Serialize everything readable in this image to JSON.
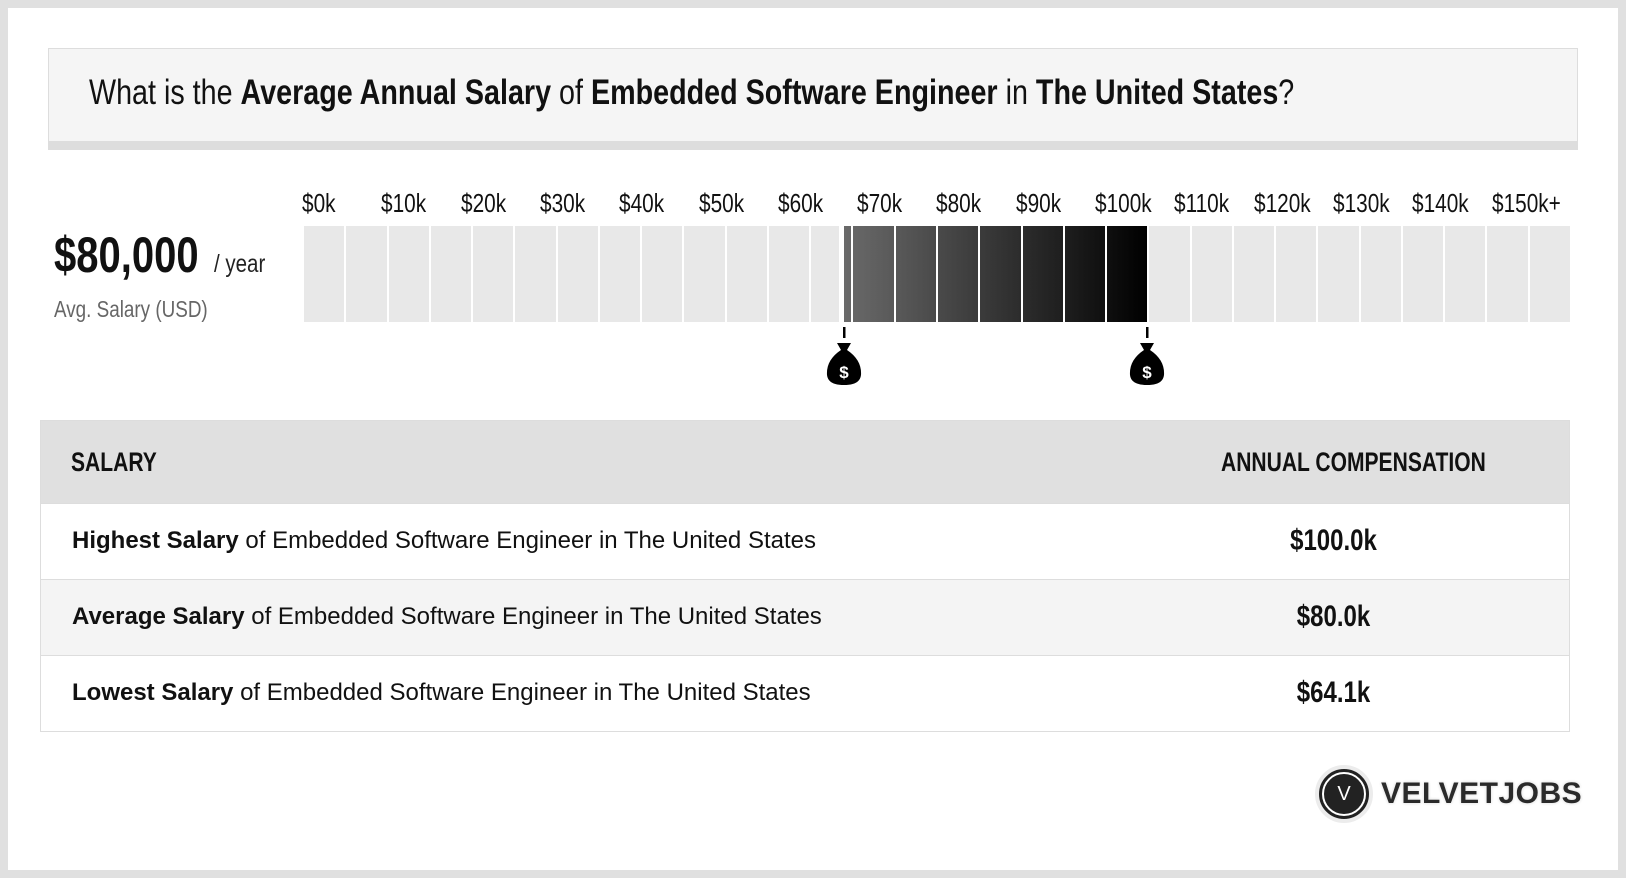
{
  "header": {
    "q1": "What is the ",
    "b1": "Average Annual Salary",
    "q2": " of ",
    "b2": "Embedded Software Engineer",
    "q3": " in ",
    "b3": "The United States",
    "q4": "?"
  },
  "summary": {
    "value": "$80,000",
    "unit": "/ year",
    "label": "Avg. Salary (USD)"
  },
  "chart_data": {
    "type": "range-bar",
    "tick_labels": [
      "$0k",
      "$10k",
      "$20k",
      "$30k",
      "$40k",
      "$50k",
      "$60k",
      "$70k",
      "$80k",
      "$90k",
      "$100k",
      "$110k",
      "$120k",
      "$130k",
      "$140k",
      "$150k+"
    ],
    "xlim": [
      0,
      150000
    ],
    "segment_size": 5000,
    "range": {
      "low": 64100,
      "high": 100000
    },
    "average": 80000,
    "colors": {
      "empty": "#e8e8e8",
      "range_start": "#6a6a6a",
      "range_end": "#000000",
      "marker": "#000000"
    },
    "markers": [
      "money-bag-icon",
      "money-bag-icon"
    ]
  },
  "table": {
    "col_salary": "SALARY",
    "col_comp": "ANNUAL COMPENSATION",
    "rows": [
      {
        "bold": "Highest Salary",
        "rest": " of Embedded Software Engineer in The United States",
        "value": "$100.0k"
      },
      {
        "bold": "Average Salary",
        "rest": " of Embedded Software Engineer in The United States",
        "value": "$80.0k"
      },
      {
        "bold": "Lowest Salary",
        "rest": " of Embedded Software Engineer in The United States",
        "value": "$64.1k"
      }
    ]
  },
  "logo": {
    "letter": "V",
    "text": "VELVETJOBS"
  }
}
